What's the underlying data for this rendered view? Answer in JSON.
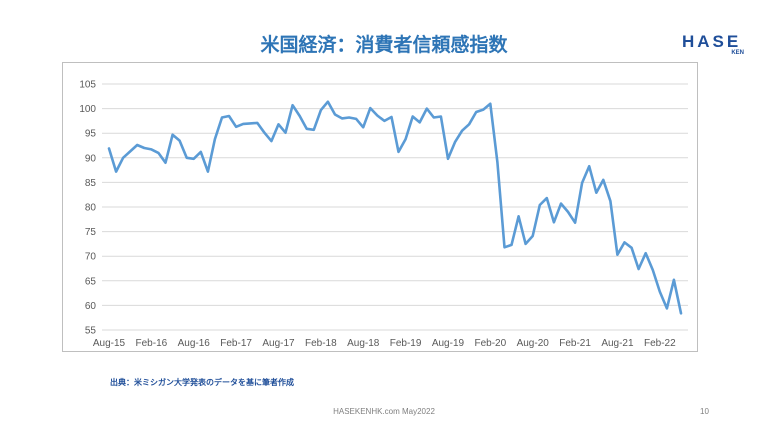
{
  "slide": {
    "title": "米国経済：消費者信頼感指数",
    "source": "出典：米ミシガン大学発表のデータを基に筆者作成",
    "footer": "HASEKENHK.com  May2022",
    "page_number": "10",
    "logo_main": "HASE",
    "logo_sub": "KEN"
  },
  "colors": {
    "title": "#2e75b6",
    "line": "#5b9bd5",
    "grid": "#d9d9d9",
    "logo": "#1f4e99"
  },
  "chart_data": {
    "type": "line",
    "title": "",
    "xlabel": "",
    "ylabel": "",
    "ylim": [
      55,
      105
    ],
    "yticks": [
      55,
      60,
      65,
      70,
      75,
      80,
      85,
      90,
      95,
      100,
      105
    ],
    "grid": true,
    "legend": "none",
    "xtick_labels": [
      "Aug-15",
      "Feb-16",
      "Aug-16",
      "Feb-17",
      "Aug-17",
      "Feb-18",
      "Aug-18",
      "Feb-19",
      "Aug-19",
      "Feb-20",
      "Aug-20",
      "Feb-21",
      "Aug-21",
      "Feb-22"
    ],
    "series": [
      {
        "name": "",
        "x": [
          "Aug-15",
          "Sep-15",
          "Oct-15",
          "Nov-15",
          "Dec-15",
          "Jan-16",
          "Feb-16",
          "Mar-16",
          "Apr-16",
          "May-16",
          "Jun-16",
          "Jul-16",
          "Aug-16",
          "Sep-16",
          "Oct-16",
          "Nov-16",
          "Dec-16",
          "Jan-17",
          "Feb-17",
          "Mar-17",
          "Apr-17",
          "May-17",
          "Jun-17",
          "Jul-17",
          "Aug-17",
          "Sep-17",
          "Oct-17",
          "Nov-17",
          "Dec-17",
          "Jan-18",
          "Feb-18",
          "Mar-18",
          "Apr-18",
          "May-18",
          "Jun-18",
          "Jul-18",
          "Aug-18",
          "Sep-18",
          "Oct-18",
          "Nov-18",
          "Dec-18",
          "Jan-19",
          "Feb-19",
          "Mar-19",
          "Apr-19",
          "May-19",
          "Jun-19",
          "Jul-19",
          "Aug-19",
          "Sep-19",
          "Oct-19",
          "Nov-19",
          "Dec-19",
          "Jan-20",
          "Feb-20",
          "Mar-20",
          "Apr-20",
          "May-20",
          "Jun-20",
          "Jul-20",
          "Aug-20",
          "Sep-20",
          "Oct-20",
          "Nov-20",
          "Dec-20",
          "Jan-21",
          "Feb-21",
          "Mar-21",
          "Apr-21",
          "May-21",
          "Jun-21",
          "Jul-21",
          "Aug-21",
          "Sep-21",
          "Oct-21",
          "Nov-21",
          "Dec-21",
          "Jan-22",
          "Feb-22",
          "Mar-22",
          "Apr-22",
          "May-22"
        ],
        "values": [
          91.9,
          87.2,
          90.0,
          91.3,
          92.6,
          92.0,
          91.7,
          91.0,
          89.0,
          94.7,
          93.5,
          90.0,
          89.8,
          91.2,
          87.2,
          93.8,
          98.2,
          98.5,
          96.3,
          96.9,
          97.0,
          97.1,
          95.1,
          93.4,
          96.8,
          95.1,
          100.7,
          98.5,
          95.9,
          95.7,
          99.7,
          101.4,
          98.8,
          98.0,
          98.2,
          97.9,
          96.2,
          100.1,
          98.6,
          97.5,
          98.3,
          91.2,
          93.8,
          98.4,
          97.2,
          100.0,
          98.2,
          98.4,
          89.8,
          93.2,
          95.5,
          96.8,
          99.3,
          99.8,
          101.0,
          89.1,
          71.8,
          72.3,
          78.1,
          72.5,
          74.1,
          80.4,
          81.8,
          76.9,
          80.7,
          79.0,
          76.8,
          84.9,
          88.3,
          82.9,
          85.5,
          81.2,
          70.3,
          72.8,
          71.7,
          67.4,
          70.6,
          67.2,
          62.8,
          59.4,
          65.2,
          58.4
        ]
      }
    ]
  }
}
